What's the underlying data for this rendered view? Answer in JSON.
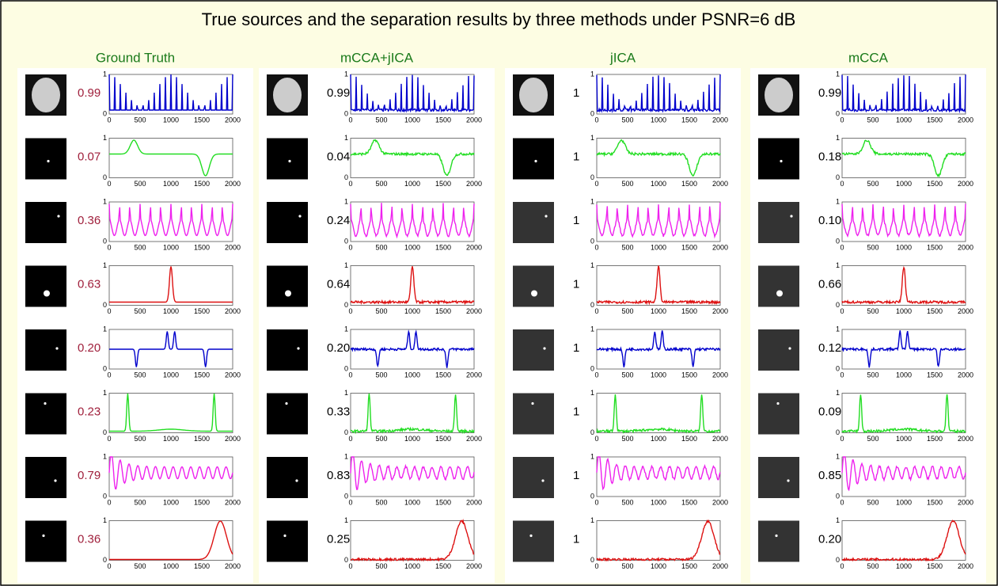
{
  "title": "True sources and the separation results by three methods under PSNR=6 dB",
  "panels": [
    {
      "title": "Ground Truth",
      "scores": [
        "0.99",
        "0.07",
        "0.36",
        "0.63",
        "0.20",
        "0.23",
        "0.79",
        "0.36"
      ]
    },
    {
      "title": "mCCA+jICA",
      "scores": [
        "0.99",
        "0.04",
        "0.24",
        "0.64",
        "0.20",
        "0.33",
        "0.83",
        "0.25"
      ]
    },
    {
      "title": "jICA",
      "scores": [
        "1",
        "1",
        "1",
        "1",
        "1",
        "1",
        "1",
        "1"
      ]
    },
    {
      "title": "mCCA",
      "scores": [
        "0.99",
        "0.18",
        "0.10",
        "0.66",
        "0.12",
        "0.09",
        "0.85",
        "0.20"
      ]
    }
  ],
  "axes": {
    "xticks": [
      0,
      500,
      1000,
      1500,
      2000
    ],
    "yticks": [
      0,
      1
    ]
  }
}
